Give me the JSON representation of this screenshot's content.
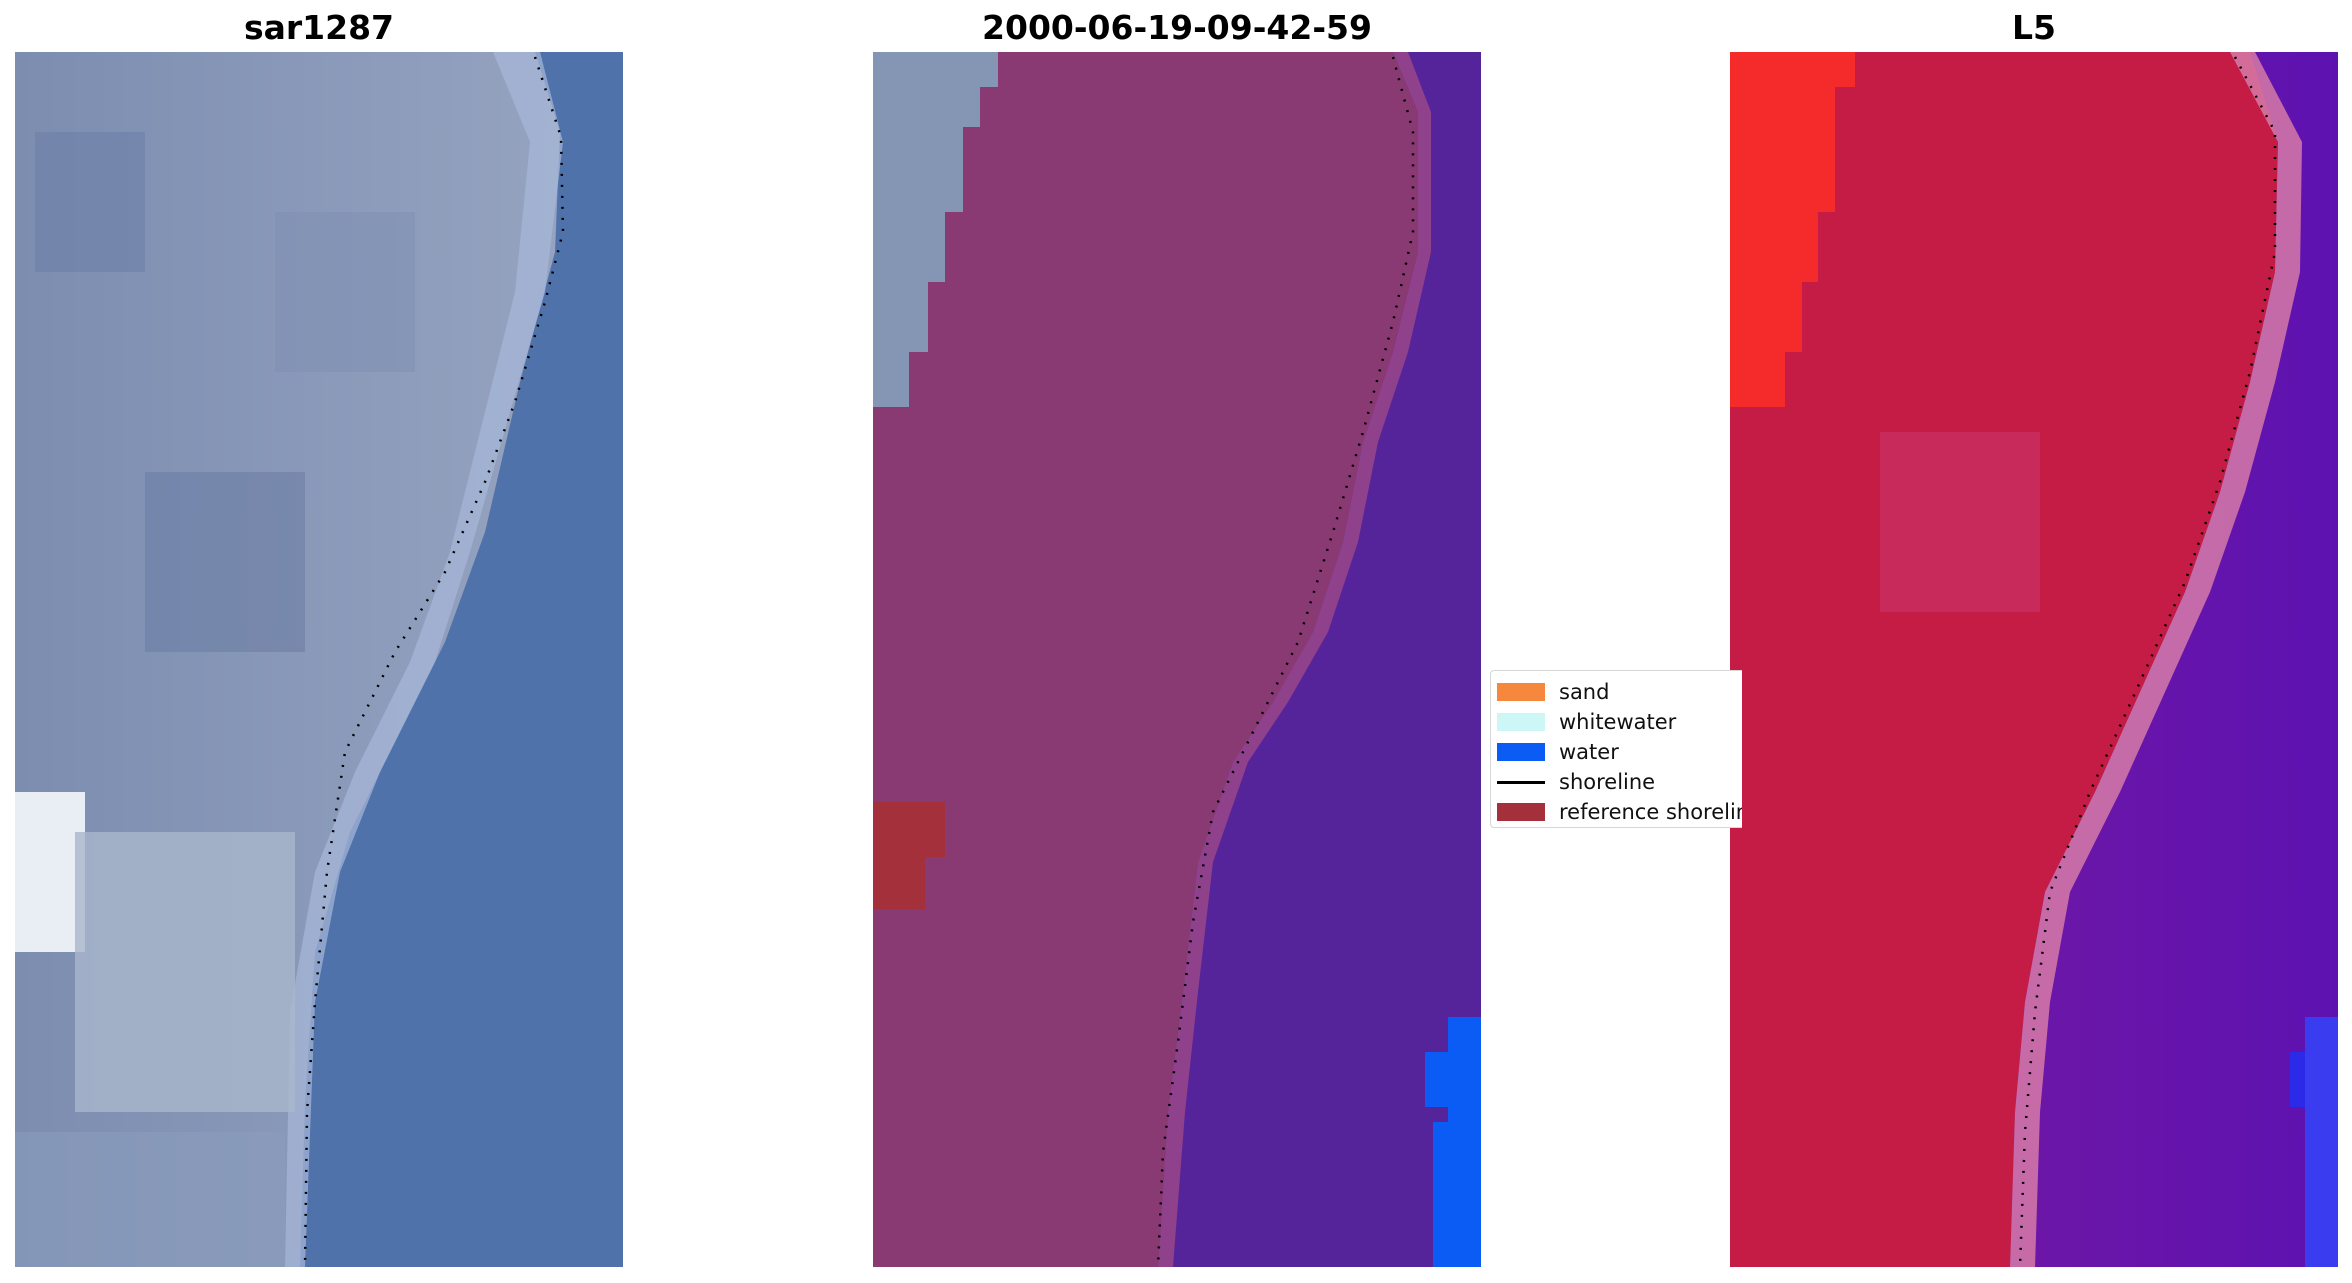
{
  "panels": [
    {
      "title": "sar1287",
      "icon": "satellite-rgb-image"
    },
    {
      "title": "2000-06-19-09-42-59",
      "icon": "classified-overlay-image"
    },
    {
      "title": "L5",
      "icon": "false-color-index-image"
    }
  ],
  "legend": {
    "items": [
      {
        "label": "sand",
        "color": "#f5883c",
        "kind": "patch"
      },
      {
        "label": "whitewater",
        "color": "#cdf7f7",
        "kind": "patch"
      },
      {
        "label": "water",
        "color": "#0a5cf5",
        "kind": "patch"
      },
      {
        "label": "shoreline",
        "color": "#000000",
        "kind": "line"
      },
      {
        "label": "reference shoreline",
        "color": "#a3303a",
        "kind": "patch"
      }
    ]
  },
  "colors": {
    "rgb_land": "#8a9ab8",
    "rgb_water": "#4f72aa",
    "class_land": "#8a3a72",
    "class_water": "#55249a",
    "index_land": "#c41c45",
    "index_water": "#6a16a8"
  }
}
